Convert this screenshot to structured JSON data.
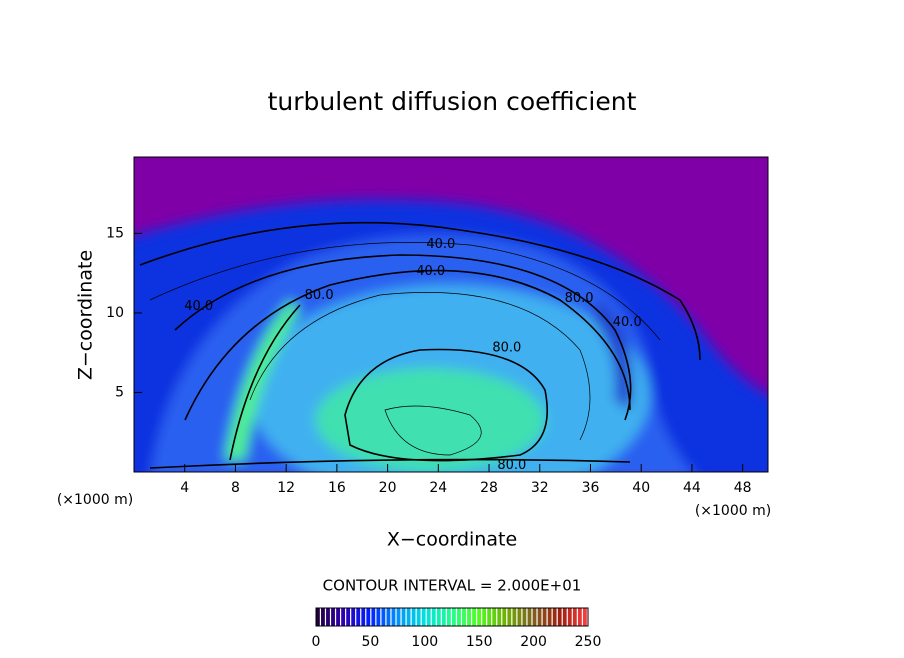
{
  "chart_data": {
    "type": "contour",
    "title": "turbulent diffusion coefficient",
    "xlabel": "X−coordinate",
    "ylabel": "Z−coordinate",
    "x_unit_left": "(×1000 m)",
    "x_unit_right": "(×1000 m)",
    "xlim": [
      0,
      50
    ],
    "xticks": [
      4,
      8,
      12,
      16,
      20,
      24,
      28,
      32,
      36,
      40,
      44,
      48
    ],
    "ylim": [
      0,
      19.8
    ],
    "yticks": [
      5,
      10,
      15
    ],
    "contour_labels": [
      {
        "label": "40.0",
        "x": 24.2,
        "y": 14.3
      },
      {
        "label": "40.0",
        "x": 23.4,
        "y": 12.6
      },
      {
        "label": "80.0",
        "x": 14.6,
        "y": 11.1
      },
      {
        "label": "40.0",
        "x": 5.1,
        "y": 10.4
      },
      {
        "label": "80.0",
        "x": 35.1,
        "y": 10.9
      },
      {
        "label": "40.0",
        "x": 38.9,
        "y": 9.4
      },
      {
        "label": "80.0",
        "x": 29.4,
        "y": 7.8
      },
      {
        "label": "80.0",
        "x": 29.8,
        "y": 0.4
      }
    ],
    "colorbar": {
      "caption": "CONTOUR INTERVAL = 2.000E+01",
      "lim": [
        0,
        250
      ],
      "ticks": [
        0,
        50,
        100,
        150,
        200,
        250
      ],
      "colormap": [
        "#200030",
        "#3000b0",
        "#0020ff",
        "#0090ff",
        "#00e0e0",
        "#20ff90",
        "#50ff20",
        "#70b000",
        "#806020",
        "#a02010",
        "#ff4040"
      ]
    }
  }
}
